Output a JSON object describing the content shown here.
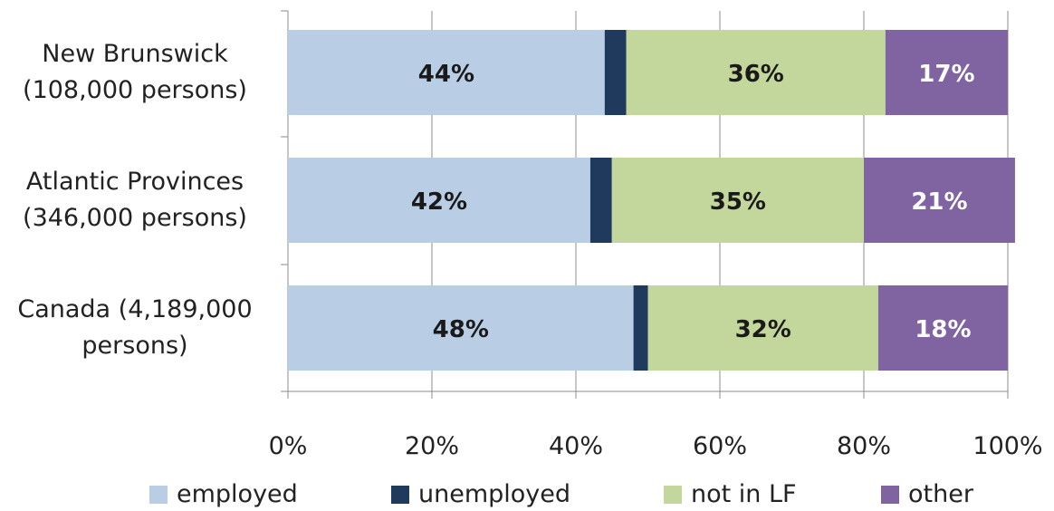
{
  "chart_data": {
    "type": "bar",
    "orientation": "horizontal",
    "stacked": true,
    "categories": [
      "New Brunswick (108,000 persons)",
      "Atlantic Provinces (346,000 persons)",
      "Canada (4,189,000 persons)"
    ],
    "category_lines": [
      [
        "New Brunswick",
        "(108,000 persons)"
      ],
      [
        "Atlantic Provinces",
        "(346,000 persons)"
      ],
      [
        "Canada (4,189,000",
        "persons)"
      ]
    ],
    "series": [
      {
        "name": "employed",
        "color": "#B9CDE5",
        "values": [
          44,
          42,
          48
        ],
        "labels": [
          "44%",
          "42%",
          "48%"
        ],
        "label_color": "#1a1a1a"
      },
      {
        "name": "unemployed",
        "color": "#1F3A5C",
        "values": [
          3,
          3,
          2
        ],
        "labels": [
          "",
          "",
          ""
        ],
        "label_color": "#ffffff"
      },
      {
        "name": "not in LF",
        "color": "#C3D69B",
        "values": [
          36,
          35,
          32
        ],
        "labels": [
          "36%",
          "35%",
          "32%"
        ],
        "label_color": "#1a1a1a"
      },
      {
        "name": "other",
        "color": "#8064A2",
        "values": [
          17,
          21,
          18
        ],
        "labels": [
          "17%",
          "21%",
          "18%"
        ],
        "label_color": "#ffffff"
      }
    ],
    "xlim": [
      0,
      100
    ],
    "x_ticks": [
      "0%",
      "20%",
      "40%",
      "60%",
      "80%",
      "100%"
    ],
    "grid": true,
    "legend_position": "bottom",
    "title": "",
    "xlabel": "",
    "ylabel": ""
  }
}
